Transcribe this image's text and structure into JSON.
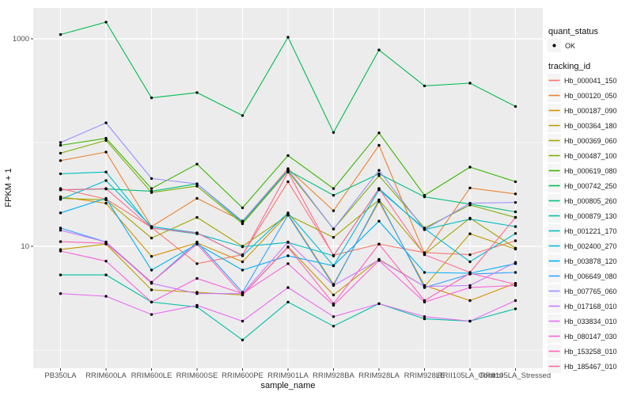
{
  "chart_data": {
    "type": "line",
    "title": "",
    "xlabel": "sample_name",
    "ylabel": "FPKM + 1",
    "y_scale": "log10",
    "y_tick_values": [
      1000,
      10
    ],
    "y_tick_labels": [
      "1000",
      "10"
    ],
    "y_minor_gridlines": [
      100,
      1
    ],
    "grid_on": true,
    "legend_position": "right",
    "panel_bg": "#ececec",
    "grid_color": "#ffffff",
    "point_color": "#000000",
    "tick_color": "#333333",
    "categories": [
      "PB350LA",
      "RRIM600LA",
      "RRIM600LE",
      "RRIM600SE",
      "RRIM600PE",
      "RRIM901LA",
      "RRIM928BA",
      "RRIM928LA",
      "RRIM928LE",
      "RRII105LA_Control",
      "RRII105LA_Stressed"
    ],
    "legend": {
      "quant_status_title": "quant_status",
      "quant_status_items": [
        {
          "label": "OK",
          "symbol": "black-point"
        }
      ],
      "tracking_id_title": "tracking_id"
    },
    "series": [
      {
        "name": "Hb_000041_150",
        "color": "#F8766D",
        "values": [
          36,
          28.5,
          15.2,
          6.8,
          8.3,
          42,
          8.2,
          10.5,
          8.7,
          8.3,
          11.3
        ]
      },
      {
        "name": "Hb_000120_050",
        "color": "#EA8331",
        "values": [
          67,
          81,
          15.5,
          29,
          17.5,
          56,
          22,
          94,
          8.5,
          36.5,
          32
        ]
      },
      {
        "name": "Hb_000187_090",
        "color": "#D89000",
        "values": [
          30,
          26,
          8,
          10.8,
          7.1,
          20.5,
          4.3,
          27,
          4.2,
          3,
          4.4
        ]
      },
      {
        "name": "Hb_000364_180",
        "color": "#C09B00",
        "values": [
          9.3,
          10.5,
          3.8,
          3.6,
          3.4,
          9.9,
          3.4,
          7.5,
          4.1,
          13.2,
          9.4
        ]
      },
      {
        "name": "Hb_000369_060",
        "color": "#A3A500",
        "values": [
          29,
          28,
          12,
          19,
          10,
          20,
          12.2,
          28,
          8.4,
          18.7,
          9.6
        ]
      },
      {
        "name": "Hb_000487_100",
        "color": "#7CAE00",
        "values": [
          79,
          105,
          33,
          38,
          16.5,
          53,
          14.7,
          48,
          15,
          25,
          19
        ]
      },
      {
        "name": "Hb_000619_080",
        "color": "#39B600",
        "values": [
          94,
          110,
          36,
          62,
          23.5,
          75,
          36,
          124,
          31,
          58,
          42
        ]
      },
      {
        "name": "Hb_000742_250",
        "color": "#00BB4E",
        "values": [
          1100,
          1450,
          270,
          303,
          182,
          1035,
          125,
          780,
          352,
          374,
          223
        ]
      },
      {
        "name": "Hb_000805_260",
        "color": "#00BF7D",
        "values": [
          35,
          35.7,
          34,
          40,
          17,
          54,
          31,
          50,
          30,
          25.5,
          21.5
        ]
      },
      {
        "name": "Hb_000879_130",
        "color": "#00C1A3",
        "values": [
          5.3,
          5.3,
          2.9,
          2.6,
          1.25,
          2.9,
          1.7,
          2.8,
          2,
          1.9,
          2.5
        ]
      },
      {
        "name": "Hb_001221_170",
        "color": "#00BFC4",
        "values": [
          50,
          52,
          15,
          13.2,
          9.9,
          10.9,
          8.1,
          36,
          14.5,
          18.3,
          15.5
        ]
      },
      {
        "name": "Hb_002400_270",
        "color": "#00BBDA",
        "values": [
          28.3,
          43,
          15.5,
          13.5,
          8.1,
          21,
          6.5,
          35,
          14.8,
          7.1,
          13.3
        ]
      },
      {
        "name": "Hb_003878_120",
        "color": "#00B0F6",
        "values": [
          21,
          29,
          5.9,
          10.5,
          5.9,
          8.1,
          6.5,
          17.5,
          5.6,
          5.5,
          6.8
        ]
      },
      {
        "name": "Hb_006649_080",
        "color": "#35A2FF",
        "values": [
          15,
          11,
          4.5,
          11,
          3.6,
          20,
          4.2,
          28,
          4,
          5.4,
          5.6
        ]
      },
      {
        "name": "Hb_007765_060",
        "color": "#9590FF",
        "values": [
          100,
          155,
          45,
          40,
          17.5,
          55,
          14.7,
          54,
          14.5,
          26,
          26.5
        ]
      },
      {
        "name": "Hb_017168_010",
        "color": "#C77CFF",
        "values": [
          14.3,
          11,
          4.4,
          3.5,
          3.5,
          11,
          4.2,
          7.4,
          4.1,
          4.2,
          7
        ]
      },
      {
        "name": "Hb_033834_010",
        "color": "#E76BF3",
        "values": [
          3.5,
          3.3,
          2.2,
          2.7,
          1.9,
          4,
          2.1,
          2.8,
          2.1,
          1.9,
          3
        ]
      },
      {
        "name": "Hb_080147_030",
        "color": "#FA62DB",
        "values": [
          9,
          7.2,
          2.9,
          4.9,
          3.5,
          6.8,
          2.7,
          7.3,
          2.9,
          4,
          4.2
        ]
      },
      {
        "name": "Hb_153258_010",
        "color": "#FF62BC",
        "values": [
          11.1,
          10.7,
          4.5,
          10.5,
          3.4,
          9.8,
          2.8,
          10.5,
          3,
          5.5,
          4.3
        ]
      },
      {
        "name": "Hb_185467_010",
        "color": "#FF6A98",
        "values": [
          35,
          36,
          15,
          13.4,
          8.2,
          52,
          8.1,
          36,
          8.3,
          5.6,
          19
        ]
      }
    ]
  }
}
